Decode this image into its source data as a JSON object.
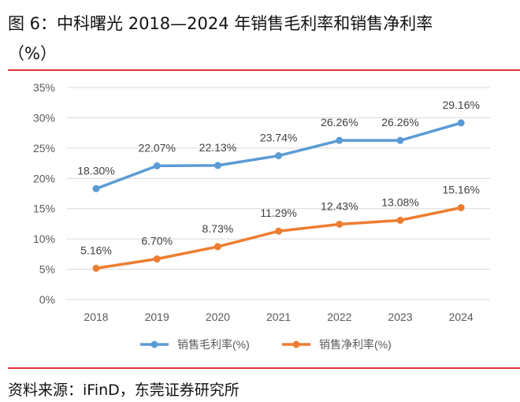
{
  "title_line1": "图 6：中科曙光 2018—2024 年销售毛利率和销售净利率",
  "title_line2": "（%）",
  "source": "资料来源：iFinD，东莞证券研究所",
  "chart_data": {
    "type": "line",
    "categories": [
      "2018",
      "2019",
      "2020",
      "2021",
      "2022",
      "2023",
      "2024"
    ],
    "ylim": [
      0,
      35
    ],
    "yticks": [
      "0%",
      "5%",
      "10%",
      "15%",
      "20%",
      "25%",
      "30%",
      "35%"
    ],
    "grid": true,
    "legend_position": "bottom",
    "series": [
      {
        "name": "销售毛利率(%)",
        "color": "#5b9bd5",
        "values": [
          18.3,
          22.07,
          22.13,
          23.74,
          26.26,
          26.26,
          29.16
        ],
        "labels": [
          "18.30%",
          "22.07%",
          "22.13%",
          "23.74%",
          "26.26%",
          "26.26%",
          "29.16%"
        ]
      },
      {
        "name": "销售净利率(%)",
        "color": "#ed7d31",
        "values": [
          5.16,
          6.7,
          8.73,
          11.29,
          12.43,
          13.08,
          15.16
        ],
        "labels": [
          "5.16%",
          "6.70%",
          "8.73%",
          "11.29%",
          "12.43%",
          "13.08%",
          "15.16%"
        ]
      }
    ]
  }
}
